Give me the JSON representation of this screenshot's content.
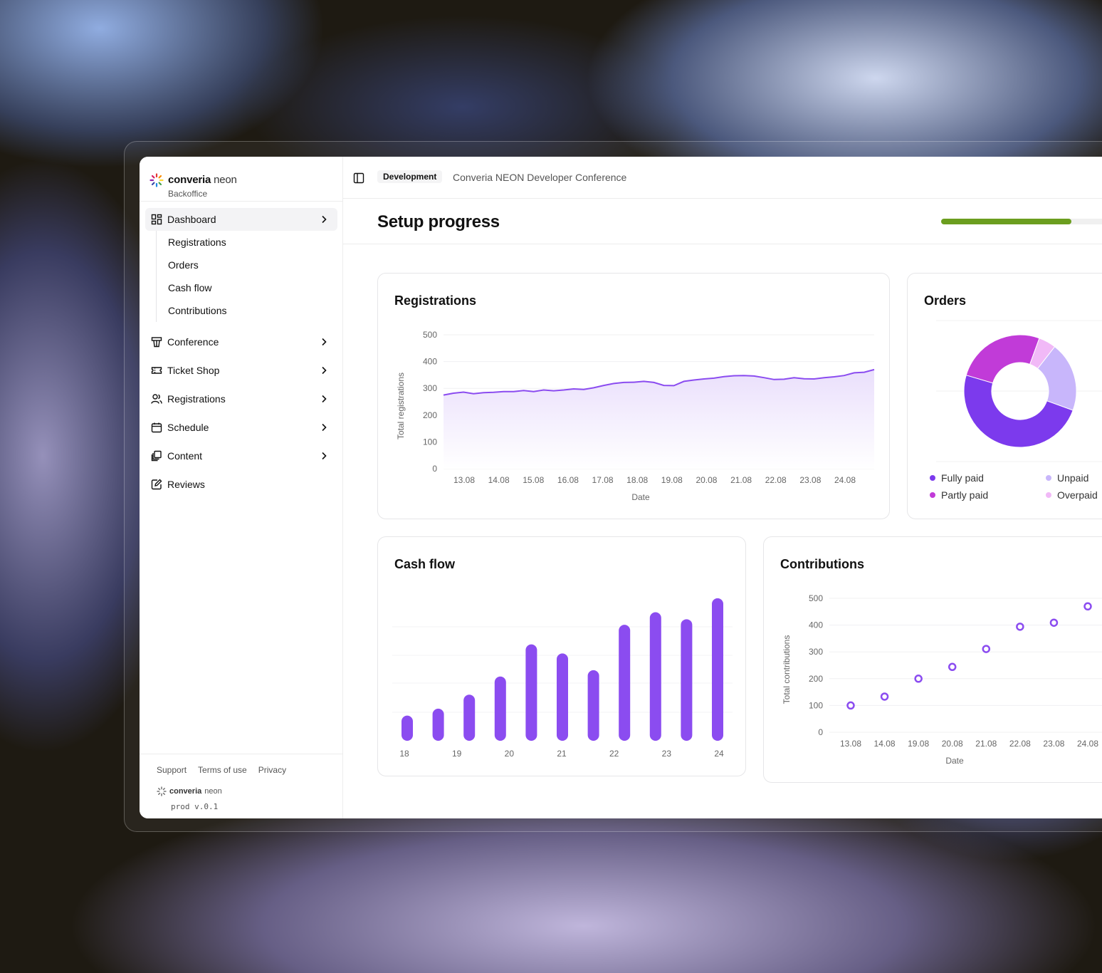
{
  "brand": {
    "name": "converia",
    "name_light": "neon",
    "subtitle": "Backoffice"
  },
  "sidebar": {
    "dashboard": "Dashboard",
    "dashboard_sub": [
      "Registrations",
      "Orders",
      "Cash flow",
      "Contributions"
    ],
    "items": [
      {
        "label": "Conference",
        "icon": "podium-icon",
        "chevron": true
      },
      {
        "label": "Ticket Shop",
        "icon": "ticket-icon",
        "chevron": true
      },
      {
        "label": "Registrations",
        "icon": "users-icon",
        "chevron": true
      },
      {
        "label": "Schedule",
        "icon": "calendar-icon",
        "chevron": true
      },
      {
        "label": "Content",
        "icon": "content-icon",
        "chevron": true
      },
      {
        "label": "Reviews",
        "icon": "reviews-icon",
        "chevron": false
      }
    ],
    "footer": {
      "links": [
        "Support",
        "Terms of use",
        "Privacy"
      ],
      "brand": "converia",
      "brand_light": "neon",
      "version": "prod v.0.1"
    }
  },
  "topbar": {
    "environment": "Development",
    "conference": "Converia NEON Developer Conference"
  },
  "header": {
    "title": "Setup progress",
    "progress": 0.61,
    "progress_color": "#6b9e1f"
  },
  "colors": {
    "accent": "#8b4cf0",
    "area_fill": "#f3ecfd"
  },
  "charts": {
    "registrations": {
      "title": "Registrations",
      "chart_data": {
        "type": "area",
        "title": "Registrations",
        "xlabel": "Date",
        "ylabel": "Total registrations",
        "ylim": [
          0,
          500
        ],
        "yticks": [
          "500",
          "400",
          "300",
          "200",
          "100",
          "0"
        ],
        "xticks": [
          "13.08",
          "14.08",
          "15.08",
          "16.08",
          "17.08",
          "18.08",
          "19.08",
          "20.08",
          "21.08",
          "22.08",
          "23.08",
          "24.08"
        ],
        "values": [
          275,
          282,
          286,
          280,
          284,
          285,
          288,
          288,
          292,
          288,
          294,
          291,
          294,
          298,
          296,
          302,
          311,
          318,
          322,
          323,
          326,
          322,
          311,
          310,
          326,
          331,
          335,
          338,
          344,
          347,
          348,
          346,
          340,
          333,
          334,
          340,
          336,
          335,
          340,
          343,
          348,
          358,
          360,
          370
        ],
        "grid": true
      }
    },
    "orders": {
      "title": "Orders",
      "chart_data": {
        "type": "pie",
        "title": "Orders",
        "slices": [
          {
            "label": "Fully paid",
            "value": 49,
            "color": "#7c3aed"
          },
          {
            "label": "Partly paid",
            "value": 26,
            "color": "#c13bd8"
          },
          {
            "label": "Overpaid",
            "value": 5,
            "color": "#f1b9f7"
          },
          {
            "label": "Unpaid",
            "value": 20,
            "color": "#c8b6fb"
          }
        ],
        "legend": "bottom"
      }
    },
    "cashflow": {
      "title": "Cash flow",
      "chart_data": {
        "type": "bar",
        "title": "Cash flow",
        "xticks": [
          "18",
          "19",
          "20",
          "21",
          "22",
          "23",
          "24"
        ],
        "values": [
          36,
          46,
          66,
          92,
          138,
          125,
          101,
          166,
          184,
          174,
          204
        ],
        "ylim": [
          0,
          210
        ],
        "grid": true
      }
    },
    "contributions": {
      "title": "Contributions",
      "chart_data": {
        "type": "scatter",
        "title": "Contributions",
        "xlabel": "Date",
        "ylabel": "Total contributions",
        "ylim": [
          0,
          500
        ],
        "yticks": [
          "500",
          "400",
          "300",
          "200",
          "100",
          "0"
        ],
        "x": [
          "13.08",
          "14.08",
          "19.08",
          "20.08",
          "21.08",
          "22.08",
          "23.08",
          "24.08"
        ],
        "y": [
          100,
          133,
          200,
          244,
          311,
          394,
          409,
          470
        ],
        "grid": true
      }
    }
  }
}
